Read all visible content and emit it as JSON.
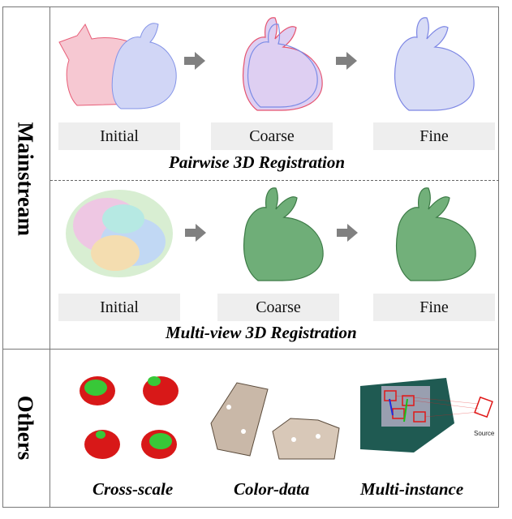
{
  "side_labels": {
    "mainstream": "Mainstream",
    "others": "Others"
  },
  "pairwise": {
    "title": "Pairwise 3D Registration",
    "stages": [
      "Initial",
      "Coarse",
      "Fine"
    ]
  },
  "multiview": {
    "title": "Multi-view 3D Registration",
    "stages": [
      "Initial",
      "Coarse",
      "Fine"
    ]
  },
  "others": {
    "categories": [
      "Cross-scale",
      "Color-data",
      "Multi-instance"
    ],
    "source_label": "Source"
  },
  "colors": {
    "red": "#e0284a",
    "blue": "#5a6fe0",
    "green": "#2fa04a",
    "gray_arrow": "#808080",
    "box": "#eeeeee"
  }
}
